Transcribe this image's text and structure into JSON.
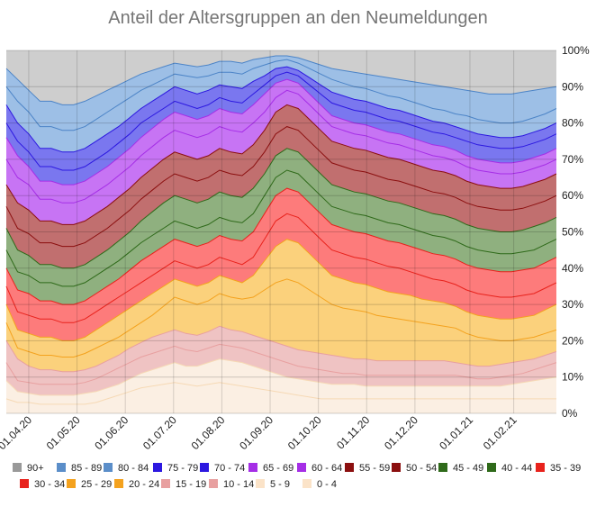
{
  "chart_data": {
    "type": "area",
    "stacked": "percent",
    "title": "Anteil der Altersgruppen an den Neumeldungen",
    "ylim": [
      0,
      100
    ],
    "y_ticks": [
      "0%",
      "10%",
      "20%",
      "30%",
      "40%",
      "50%",
      "60%",
      "70%",
      "80%",
      "90%",
      "100%"
    ],
    "x_ticks": [
      "01.04.20",
      "01.05.20",
      "01.06.20",
      "01.07.20",
      "01.08.20",
      "01.09.20",
      "01.10.20",
      "01.11.20",
      "01.12.20",
      "01.01.21",
      "01.02.21"
    ],
    "x_tick_weeks": [
      2,
      6.3,
      10.6,
      14.9,
      19.2,
      23.5,
      27.8,
      32.1,
      36.4,
      41.3,
      45.2
    ],
    "x": [
      0,
      1,
      2,
      3,
      4,
      5,
      6,
      7,
      8,
      9,
      10,
      11,
      12,
      13,
      14,
      15,
      16,
      17,
      18,
      19,
      20,
      21,
      22,
      23,
      24,
      25,
      26,
      27,
      28,
      29,
      30,
      31,
      32,
      33,
      34,
      35,
      36,
      37,
      38,
      39,
      40,
      41,
      42,
      43,
      44,
      45,
      46,
      47,
      48,
      49
    ],
    "grid": true,
    "legend_position": "bottom",
    "cumulative_boundaries": [
      {
        "name": "0 - 4",
        "values": [
          4,
          3,
          3,
          2.5,
          2.5,
          2.5,
          2.5,
          2.5,
          3,
          4,
          5,
          6,
          7,
          7.5,
          8,
          8.5,
          8,
          7.5,
          8,
          8.5,
          8,
          7.5,
          7,
          6.5,
          6,
          5.5,
          5,
          4.5,
          4,
          4,
          4,
          4,
          4,
          4,
          4,
          4,
          4,
          4,
          4,
          4,
          4,
          4,
          4,
          4,
          4,
          4,
          4,
          4,
          4,
          4
        ]
      },
      {
        "name": "5 - 9",
        "values": [
          9,
          6,
          5.5,
          5,
          5,
          5,
          5,
          5.5,
          6,
          7,
          8,
          9.5,
          11,
          12,
          13,
          14,
          13,
          13,
          14,
          15,
          14.5,
          14,
          13,
          12,
          11,
          10,
          9.5,
          9,
          8.5,
          8,
          8,
          8,
          7.5,
          7.5,
          7.5,
          7.5,
          7.5,
          7.5,
          7.5,
          7.5,
          7.5,
          7.5,
          7.5,
          7.5,
          7.5,
          8,
          8.5,
          9,
          9.5,
          10
        ]
      },
      {
        "name": "10 - 14",
        "values": [
          14,
          9,
          8.5,
          8,
          8,
          8,
          8,
          8.5,
          9.5,
          11,
          12.5,
          14,
          15.5,
          16.5,
          17.5,
          18.5,
          17.5,
          17,
          18,
          19,
          18.5,
          18,
          17,
          16,
          15,
          14,
          13,
          12.5,
          12,
          11.5,
          11,
          11,
          10.5,
          10.5,
          10.5,
          10.5,
          10.5,
          10.5,
          10.5,
          10.5,
          10.5,
          10,
          9.5,
          9.5,
          10,
          10.5,
          11,
          12,
          13,
          14
        ]
      },
      {
        "name": "15 - 19",
        "values": [
          20,
          15,
          13,
          12,
          12,
          11.5,
          11.5,
          12,
          13,
          14.5,
          16,
          18,
          19.5,
          21,
          22,
          23,
          22,
          21.5,
          22.5,
          24,
          23,
          22.5,
          21.5,
          20.5,
          19.5,
          18.5,
          17.5,
          17,
          16.5,
          16,
          15.5,
          15,
          15,
          14.5,
          14.5,
          14.5,
          14.5,
          14.5,
          14.5,
          14.5,
          14,
          13.5,
          13,
          13,
          13.5,
          14,
          14.5,
          15,
          16,
          17
        ]
      },
      {
        "name": "20 - 24",
        "values": [
          25,
          18,
          17,
          16,
          16,
          15.5,
          15.5,
          16.5,
          18,
          19.5,
          21,
          23,
          25,
          27,
          29.5,
          32,
          31,
          30,
          31,
          33,
          32,
          31.5,
          32,
          34,
          36,
          37,
          36,
          34,
          32,
          30,
          29,
          28.5,
          28,
          27,
          26.5,
          26,
          25.5,
          25,
          24.5,
          24,
          23.5,
          22,
          21,
          20.5,
          20,
          20,
          20.5,
          21,
          22,
          23
        ]
      },
      {
        "name": "25 - 29",
        "values": [
          30,
          23,
          22,
          21,
          21,
          20,
          20,
          21,
          23,
          25,
          27,
          29,
          31,
          33,
          35,
          37,
          36,
          35,
          36,
          38,
          37,
          36,
          38,
          42,
          46,
          48,
          47,
          44,
          41,
          38,
          37,
          36,
          35.5,
          34.5,
          33.5,
          33,
          32.5,
          31.5,
          31,
          30.5,
          29.5,
          28,
          27,
          26.5,
          26,
          26,
          26.5,
          27,
          28.5,
          30
        ]
      },
      {
        "name": "30 - 34",
        "values": [
          35,
          28,
          27,
          26,
          26,
          25,
          25,
          26,
          28,
          30,
          32,
          34,
          36,
          38,
          40,
          42,
          41,
          40,
          41,
          43,
          42,
          41,
          43,
          48,
          53,
          55,
          54,
          51,
          48,
          45,
          44,
          43,
          42.5,
          41.5,
          40.5,
          40,
          39,
          38,
          37,
          36.5,
          35.5,
          34,
          33,
          32.5,
          32,
          32,
          32.5,
          33,
          34.5,
          36
        ]
      },
      {
        "name": "35 - 39",
        "values": [
          40,
          34,
          33,
          31,
          31,
          30,
          30,
          31,
          33,
          35,
          37,
          39.5,
          42,
          44,
          46,
          48,
          47,
          46,
          47,
          49,
          48,
          47.5,
          50,
          55,
          60,
          62,
          61,
          58,
          55,
          52,
          51,
          50,
          49.5,
          48.5,
          47.5,
          47,
          46,
          45,
          44,
          43.5,
          42.5,
          41,
          40,
          39.5,
          39,
          39,
          39.5,
          40,
          41.5,
          43
        ]
      },
      {
        "name": "40 - 44",
        "values": [
          45,
          39,
          38,
          36,
          36,
          35,
          35,
          36,
          38,
          40,
          42,
          44.5,
          47,
          49,
          51,
          53,
          52,
          51,
          52,
          54,
          53,
          52.5,
          55,
          60,
          65,
          67,
          66,
          63,
          60,
          57,
          56,
          55,
          54.5,
          53.5,
          52.5,
          52,
          51,
          50,
          49,
          48.5,
          47.5,
          46,
          45,
          44.5,
          44,
          44,
          44.5,
          45,
          46.5,
          48
        ]
      },
      {
        "name": "45 - 49",
        "values": [
          51,
          45,
          43.5,
          41,
          41,
          40,
          40,
          41,
          43,
          45,
          47.5,
          50,
          53,
          55.5,
          58,
          60,
          59,
          58,
          59,
          61,
          60,
          59.5,
          62,
          66,
          71,
          73,
          72,
          69,
          66,
          63,
          62,
          61,
          60.5,
          59.5,
          58.5,
          58,
          57,
          56,
          55,
          54.5,
          53.5,
          52,
          51,
          50.5,
          50,
          50,
          50.5,
          51.5,
          52.5,
          54
        ]
      },
      {
        "name": "50 - 54",
        "values": [
          57,
          51,
          49.5,
          47,
          47,
          46,
          46,
          47,
          49,
          51,
          53.5,
          56,
          59,
          61.5,
          64,
          66,
          65,
          64,
          65,
          67,
          66,
          65.5,
          68,
          72,
          77,
          79,
          78,
          75,
          72,
          69,
          68,
          67,
          66.5,
          65.5,
          64.5,
          64,
          63,
          62,
          61,
          60.5,
          59.5,
          58,
          57,
          56.5,
          56,
          56,
          56.5,
          57.5,
          58.5,
          60
        ]
      },
      {
        "name": "55 - 59",
        "values": [
          63,
          58,
          56,
          53,
          53,
          52,
          52,
          53,
          55,
          57,
          59.5,
          62,
          65,
          67.5,
          70,
          72,
          71,
          70,
          71,
          73,
          72,
          71.5,
          74,
          78,
          83,
          85,
          84,
          81,
          78,
          75,
          74,
          73,
          72.5,
          71.5,
          70.5,
          70,
          69,
          68,
          67,
          66.5,
          65.5,
          64,
          63,
          62.5,
          62,
          62,
          62.5,
          63.5,
          64.5,
          66
        ]
      },
      {
        "name": "60 - 64",
        "values": [
          70,
          65,
          63,
          59,
          59,
          58,
          58,
          59,
          61,
          63,
          65.5,
          68,
          71,
          73.5,
          76,
          78,
          77,
          76,
          77,
          79,
          78,
          77.5,
          80,
          83,
          87,
          89,
          88,
          85,
          82,
          79,
          78,
          77,
          76.5,
          75.5,
          74.5,
          74,
          73,
          72,
          71,
          70.5,
          69.5,
          68,
          67,
          66.5,
          66,
          66,
          66.5,
          67.5,
          68.5,
          70
        ]
      },
      {
        "name": "65 - 69",
        "values": [
          76,
          71,
          68,
          64,
          64,
          63,
          63,
          64,
          66,
          68,
          70.5,
          73,
          76,
          78.5,
          81,
          83,
          82,
          81,
          82,
          84,
          83,
          82.5,
          85,
          88,
          91,
          92,
          91,
          88,
          85,
          82,
          81,
          80,
          79.5,
          78.5,
          77.5,
          77,
          76,
          75,
          74,
          73.5,
          72.5,
          71,
          70,
          69.5,
          69,
          69,
          69.5,
          70.5,
          71.5,
          73
        ]
      },
      {
        "name": "70 - 74",
        "values": [
          80,
          75,
          72,
          68,
          68,
          67,
          67,
          68,
          70,
          72,
          74.5,
          77,
          80,
          82,
          84,
          86,
          85,
          84,
          85,
          87,
          86,
          85.5,
          88,
          90.5,
          93,
          94,
          93,
          90.5,
          88,
          85.5,
          84.5,
          83.5,
          83,
          82,
          81,
          80.5,
          79.5,
          78.5,
          77.5,
          77,
          76,
          75,
          74,
          73.5,
          73,
          73,
          73.5,
          74.5,
          75.5,
          77
        ]
      },
      {
        "name": "75 - 79",
        "values": [
          85,
          80,
          77,
          73,
          73,
          72,
          72,
          73,
          75,
          77,
          79,
          81.5,
          84,
          86,
          88,
          90,
          89,
          88,
          89,
          90.5,
          90,
          89.5,
          91.5,
          93,
          95,
          95.5,
          94.5,
          92.5,
          90.5,
          88.5,
          87.5,
          86.5,
          86,
          85,
          84,
          83.5,
          82.5,
          81.5,
          80.5,
          80,
          79,
          78,
          77,
          76.5,
          76,
          76,
          76.5,
          77.5,
          78.5,
          80
        ]
      },
      {
        "name": "80 - 84",
        "values": [
          90,
          86,
          83,
          79,
          79,
          78,
          78,
          79,
          81,
          83,
          85,
          87,
          89,
          90.5,
          92,
          93.5,
          93,
          92.5,
          93,
          94,
          94,
          93.5,
          95,
          96,
          97,
          97.5,
          96.5,
          95,
          93.5,
          92,
          91,
          90,
          89.5,
          88.5,
          87.5,
          87,
          86,
          85,
          84,
          83.5,
          82.5,
          82,
          81,
          80.5,
          80,
          80,
          80.5,
          81.5,
          82.5,
          84
        ]
      },
      {
        "name": "85 - 89",
        "values": [
          95,
          92,
          89,
          86,
          86,
          85,
          85,
          86,
          87.5,
          89,
          90.5,
          92,
          93.5,
          94.5,
          95.5,
          96.5,
          96,
          95.5,
          96,
          97,
          97,
          96.5,
          97.5,
          98,
          98.5,
          98.5,
          98,
          97,
          96,
          95,
          94.5,
          94,
          93.5,
          93,
          92.5,
          92,
          91.5,
          91,
          90.5,
          90,
          89.5,
          89,
          88.5,
          88,
          88,
          88,
          88.5,
          89,
          89.5,
          90
        ]
      },
      {
        "name": "90+",
        "values": [
          100,
          100,
          100,
          100,
          100,
          100,
          100,
          100,
          100,
          100,
          100,
          100,
          100,
          100,
          100,
          100,
          100,
          100,
          100,
          100,
          100,
          100,
          100,
          100,
          100,
          100,
          100,
          100,
          100,
          100,
          100,
          100,
          100,
          100,
          100,
          100,
          100,
          100,
          100,
          100,
          100,
          100,
          100,
          100,
          100,
          100,
          100,
          100,
          100,
          100
        ]
      }
    ],
    "area_colors": [
      "#fbefe3",
      "#fbefe3",
      "#efc3c3",
      "#efc3c3",
      "#fbd17c",
      "#fbd17c",
      "#fd7b7b",
      "#fd7b7b",
      "#8fb07f",
      "#8fb07f",
      "#c16f6f",
      "#c16f6f",
      "#c774f4",
      "#c774f4",
      "#7a77ef",
      "#7a77ef",
      "#9dbfe6",
      "#9dbfe6",
      "#cecece"
    ],
    "line_colors": [
      "#f6d9b5",
      "#f6d9b5",
      "#e8a0a0",
      "#e8a0a0",
      "#f4a21e",
      "#f4a21e",
      "#e8221c",
      "#e8221c",
      "#2f6a1a",
      "#2f6a1a",
      "#8b0f0f",
      "#8b0f0f",
      "#a52ee6",
      "#a52ee6",
      "#2c18e0",
      "#2c18e0",
      "#4c84c7",
      "#4c84c7",
      "#9a9a9a"
    ],
    "legend": [
      {
        "label": "90+",
        "color": "#999999"
      },
      {
        "label": "85 - 89",
        "color": "#5b8ec9"
      },
      {
        "label": "80 - 84",
        "color": "#5b8ec9"
      },
      {
        "label": "75 - 79",
        "color": "#2c18e0"
      },
      {
        "label": "70 - 74",
        "color": "#2c18e0"
      },
      {
        "label": "65 - 69",
        "color": "#a52ee6"
      },
      {
        "label": "60 - 64",
        "color": "#a52ee6"
      },
      {
        "label": "55 - 59",
        "color": "#8b0f0f"
      },
      {
        "label": "50 - 54",
        "color": "#8b0f0f"
      },
      {
        "label": "45 - 49",
        "color": "#2f6a1a"
      },
      {
        "label": "40 - 44",
        "color": "#2f6a1a"
      },
      {
        "label": "35 - 39",
        "color": "#e8221c"
      },
      {
        "label": "30 - 34",
        "color": "#e8221c"
      },
      {
        "label": "25 - 29",
        "color": "#f4a21e"
      },
      {
        "label": "20 - 24",
        "color": "#f4a21e"
      },
      {
        "label": "15 - 19",
        "color": "#e8a0a0"
      },
      {
        "label": "10 - 14",
        "color": "#e8a0a0"
      },
      {
        "label": "5 - 9",
        "color": "#fbe3c8"
      },
      {
        "label": "0 - 4",
        "color": "#fbe3c8"
      }
    ]
  }
}
